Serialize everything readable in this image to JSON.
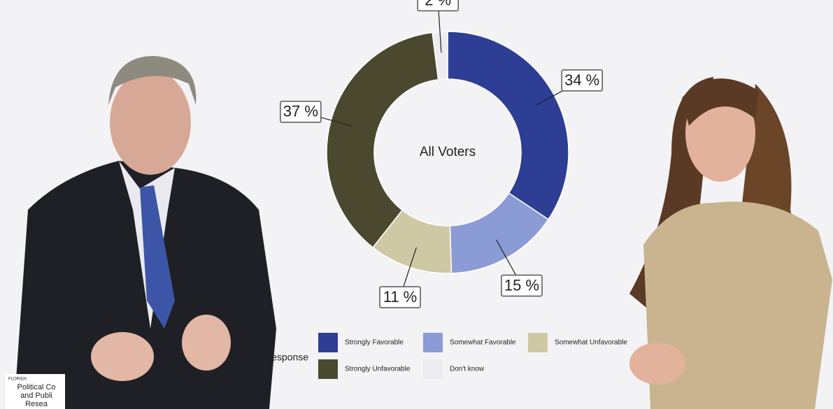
{
  "chart_data": {
    "type": "donut",
    "center_label": "All Voters",
    "legend_title": "Response",
    "categories": [
      "Strongly Favorable",
      "Somewhat Favorable",
      "Somewhat Unfavorable",
      "Strongly Unfavorable",
      "Don't know"
    ],
    "values": [
      34,
      15,
      11,
      37,
      2
    ],
    "value_labels": [
      "34 %",
      "15 %",
      "11 %",
      "37 %",
      "2 %"
    ],
    "colors": [
      "#2e3e94",
      "#8b9bd6",
      "#cfc8a4",
      "#4a4930",
      "#ebebf1"
    ]
  },
  "logo": {
    "lines": [
      "FLORIDA",
      "Political Co",
      "and Publi",
      "Resea"
    ]
  }
}
